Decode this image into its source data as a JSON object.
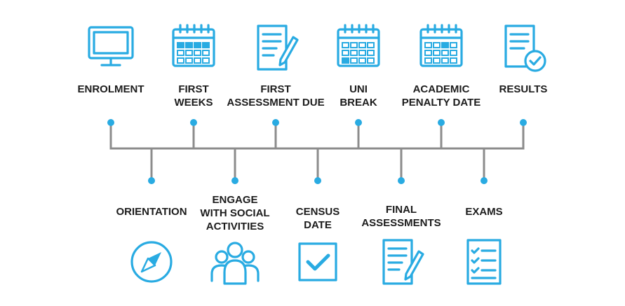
{
  "colors": {
    "accent": "#29abe2",
    "line": "#8c8c8c",
    "text": "#1c1c1c"
  },
  "milestones_top": [
    {
      "lines": [
        "ENROLMENT"
      ],
      "icon": "monitor-icon"
    },
    {
      "lines": [
        "FIRST",
        "WEEKS"
      ],
      "icon": "calendar-icon"
    },
    {
      "lines": [
        "FIRST",
        "ASSESSMENT DUE"
      ],
      "icon": "document-pencil-icon"
    },
    {
      "lines": [
        "UNI",
        "BREAK"
      ],
      "icon": "calendar-icon"
    },
    {
      "lines": [
        "ACADEMIC",
        "PENALTY DATE"
      ],
      "icon": "calendar-icon"
    },
    {
      "lines": [
        "RESULTS"
      ],
      "icon": "document-check-icon"
    }
  ],
  "milestones_bottom": [
    {
      "lines": [
        "ORIENTATION"
      ],
      "icon": "compass-icon"
    },
    {
      "lines": [
        "ENGAGE",
        "WITH SOCIAL",
        "ACTIVITIES"
      ],
      "icon": "people-group-icon"
    },
    {
      "lines": [
        "CENSUS",
        "DATE"
      ],
      "icon": "checkbox-icon"
    },
    {
      "lines": [
        "FINAL",
        "ASSESSMENTS"
      ],
      "icon": "document-pencil-icon"
    },
    {
      "lines": [
        "EXAMS"
      ],
      "icon": "checklist-icon"
    }
  ]
}
